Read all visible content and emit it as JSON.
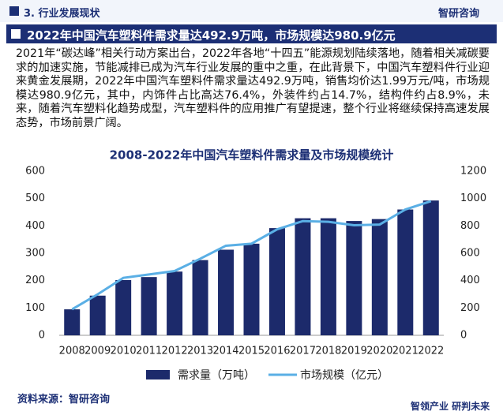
{
  "header": {
    "section": "3. 行业发展现状",
    "logo": "智研咨询",
    "banner": "2022年中国汽车塑料件需求量达492.9万吨，市场规模达980.9亿元"
  },
  "paragraph": "2021年“碳达峰”相关行动方案出台，2022年各地“十四五”能源规划陆续落地，随着相关减碳要求的加速实施，节能减排已成为汽车行业发展的重中之重，在此背景下，中国汽车塑料件行业迎来黄金发展期，2022年中国汽车塑料件需求量达492.9万吨，销售均价达1.99万元/吨，市场规模达980.9亿元，其中，内饰件占比高达76.4%，外装件约占14.7%，结构件约占8.9%，未来，随着汽车塑料化趋势成型，汽车塑料件的应用推广有望提速，整个行业将继续保持高速发展态势，市场前景广阔。",
  "chart_data": {
    "type": "bar-line",
    "title": "2008-2022年中国汽车塑料件需求量及市场规模统计",
    "categories": [
      "2008",
      "2009",
      "2010",
      "2011",
      "2012",
      "2013",
      "2014",
      "2015",
      "2016",
      "2017",
      "2018",
      "2019",
      "2020",
      "2021",
      "2022"
    ],
    "series": [
      {
        "name": "需求量（万吨）",
        "type": "bar",
        "color": "#1c2a6b",
        "values": [
          95,
          145,
          202,
          213,
          233,
          275,
          313,
          335,
          392,
          428,
          428,
          418,
          425,
          460,
          492.9
        ]
      },
      {
        "name": "市场规模（亿元）",
        "type": "line",
        "axis": "y2",
        "color": "#5aafe5",
        "values": [
          190,
          300,
          420,
          445,
          470,
          560,
          655,
          670,
          775,
          835,
          830,
          805,
          810,
          920,
          980.9
        ]
      }
    ],
    "ylim": [
      0,
      600
    ],
    "yticks": [
      0,
      100,
      200,
      300,
      400,
      500,
      600
    ],
    "y2lim": [
      0,
      1200
    ],
    "y2ticks": [
      0,
      200,
      400,
      600,
      800,
      1000,
      1200
    ],
    "legend": "bottom"
  },
  "source": "资料来源：智研咨询",
  "footer": "智领产业 研判未来"
}
